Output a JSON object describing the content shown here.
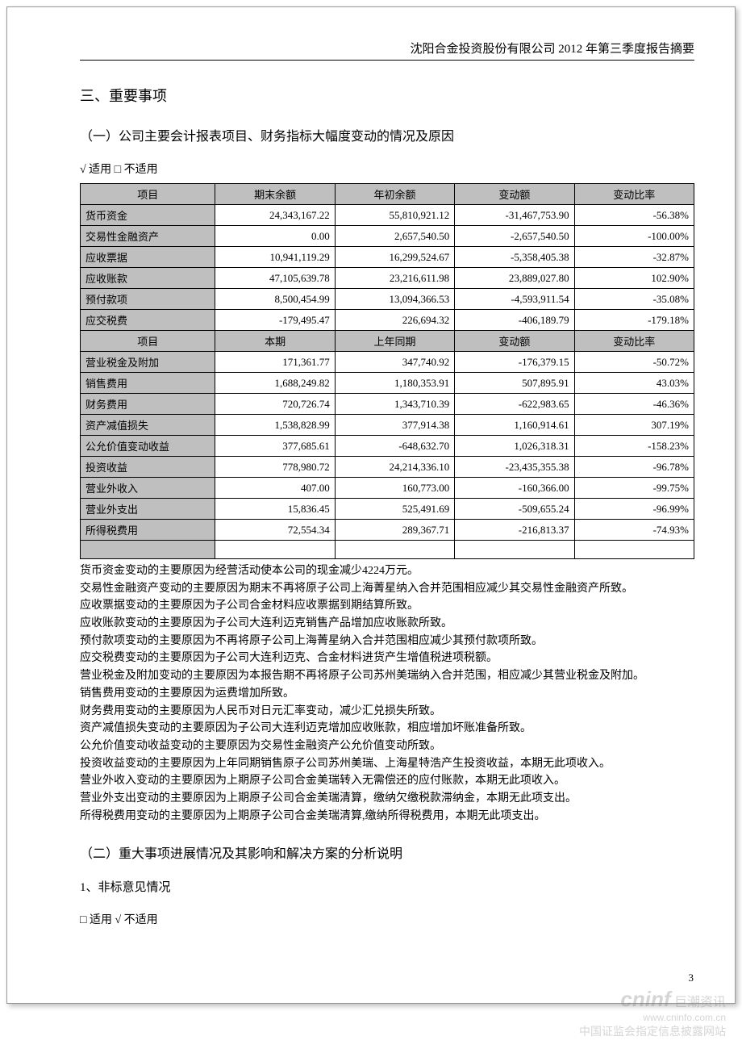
{
  "header": "沈阳合金投资股份有限公司 2012 年第三季度报告摘要",
  "sections": {
    "s1_title": "三、重要事项",
    "s1_1_title": "（一）公司主要会计报表项目、财务指标大幅度变动的情况及原因",
    "s1_1_check": "√ 适用 □ 不适用",
    "s1_2_title": "（二）重大事项进展情况及其影响和解决方案的分析说明",
    "s1_2_sub": "1、非标意见情况",
    "s1_2_check": "□ 适用 √ 不适用"
  },
  "table1": {
    "headers": [
      "项目",
      "期末余额",
      "年初余额",
      "变动额",
      "变动比率"
    ],
    "rows": [
      [
        "货币资金",
        "24,343,167.22",
        "55,810,921.12",
        "-31,467,753.90",
        "-56.38%"
      ],
      [
        "交易性金融资产",
        "0.00",
        "2,657,540.50",
        "-2,657,540.50",
        "-100.00%"
      ],
      [
        "应收票据",
        "10,941,119.29",
        "16,299,524.67",
        "-5,358,405.38",
        "-32.87%"
      ],
      [
        "应收账款",
        "47,105,639.78",
        "23,216,611.98",
        "23,889,027.80",
        "102.90%"
      ],
      [
        "预付款项",
        "8,500,454.99",
        "13,094,366.53",
        "-4,593,911.54",
        "-35.08%"
      ],
      [
        "应交税费",
        "-179,495.47",
        "226,694.32",
        "-406,189.79",
        "-179.18%"
      ]
    ]
  },
  "table2": {
    "headers": [
      "项目",
      "本期",
      "上年同期",
      "变动额",
      "变动比率"
    ],
    "rows": [
      [
        "营业税金及附加",
        "171,361.77",
        "347,740.92",
        "-176,379.15",
        "-50.72%"
      ],
      [
        "销售费用",
        "1,688,249.82",
        "1,180,353.91",
        "507,895.91",
        "43.03%"
      ],
      [
        "财务费用",
        "720,726.74",
        "1,343,710.39",
        "-622,983.65",
        "-46.36%"
      ],
      [
        "资产减值损失",
        "1,538,828.99",
        "377,914.38",
        "1,160,914.61",
        "307.19%"
      ],
      [
        "公允价值变动收益",
        "377,685.61",
        "-648,632.70",
        "1,026,318.31",
        "-158.23%"
      ],
      [
        "投资收益",
        "778,980.72",
        "24,214,336.10",
        "-23,435,355.38",
        "-96.78%"
      ],
      [
        "营业外收入",
        "407.00",
        "160,773.00",
        "-160,366.00",
        "-99.75%"
      ],
      [
        "营业外支出",
        "15,836.45",
        "525,491.69",
        "-509,655.24",
        "-96.99%"
      ],
      [
        "所得税费用",
        "72,554.34",
        "289,367.71",
        "-216,813.37",
        "-74.93%"
      ]
    ],
    "empty_row": [
      "",
      "",
      "",
      "",
      ""
    ]
  },
  "notes": [
    "货币资金变动的主要原因为经营活动使本公司的现金减少4224万元。",
    "交易性金融资产变动的主要原因为期末不再将原子公司上海菁星纳入合并范围相应减少其交易性金融资产所致。",
    "应收票据变动的主要原因为子公司合金材料应收票据到期结算所致。",
    "应收账款变动的主要原因为子公司大连利迈克销售产品增加应收账款所致。",
    "预付款项变动的主要原因为不再将原子公司上海菁星纳入合并范围相应减少其预付款项所致。",
    "应交税费变动的主要原因为子公司大连利迈克、合金材料进货产生增值税进项税额。",
    "营业税金及附加变动的主要原因为本报告期不再将原子公司苏州美瑞纳入合并范围，相应减少其营业税金及附加。",
    "销售费用变动的主要原因为运费增加所致。",
    "财务费用变动的主要原因为人民币对日元汇率变动，减少汇兑损失所致。",
    "资产减值损失变动的主要原因为子公司大连利迈克增加应收账款，相应增加坏账准备所致。",
    "公允价值变动收益变动的主要原因为交易性金融资产公允价值变动所致。",
    "投资收益变动的主要原因为上年同期销售原子公司苏州美瑞、上海星特浩产生投资收益，本期无此项收入。",
    "营业外收入变动的主要原因为上期原子公司合金美瑞转入无需偿还的应付账款，本期无此项收入。",
    "营业外支出变动的主要原因为上期原子公司合金美瑞清算，缴纳欠缴税款滞纳金，本期无此项支出。",
    "所得税费用变动的主要原因为上期原子公司合金美瑞清算,缴纳所得税费用，本期无此项支出。"
  ],
  "page_num": "3",
  "watermark": {
    "brand": "cninf",
    "cn": "巨潮资讯",
    "url": "www.cninfo.com.cn",
    "line2": "中国证监会指定信息披露网站"
  },
  "table_style": {
    "col_widths": [
      "22%",
      "19.5%",
      "19.5%",
      "19.5%",
      "19.5%"
    ],
    "header_bg": "#bfbfbf",
    "label_bg": "#bfbfbf",
    "border_color": "#000000",
    "font_size": 13
  }
}
